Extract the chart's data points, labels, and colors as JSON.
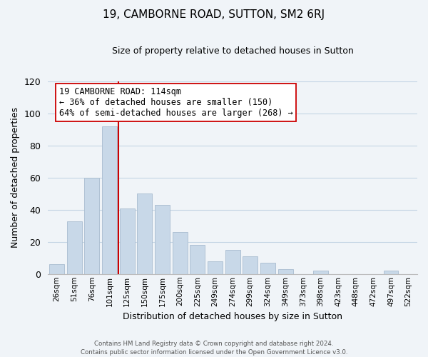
{
  "title": "19, CAMBORNE ROAD, SUTTON, SM2 6RJ",
  "subtitle": "Size of property relative to detached houses in Sutton",
  "xlabel": "Distribution of detached houses by size in Sutton",
  "ylabel": "Number of detached properties",
  "bar_labels": [
    "26sqm",
    "51sqm",
    "76sqm",
    "101sqm",
    "125sqm",
    "150sqm",
    "175sqm",
    "200sqm",
    "225sqm",
    "249sqm",
    "274sqm",
    "299sqm",
    "324sqm",
    "349sqm",
    "373sqm",
    "398sqm",
    "423sqm",
    "448sqm",
    "472sqm",
    "497sqm",
    "522sqm"
  ],
  "bar_values": [
    6,
    33,
    60,
    92,
    41,
    50,
    43,
    26,
    18,
    8,
    15,
    11,
    7,
    3,
    0,
    2,
    0,
    0,
    0,
    2,
    0
  ],
  "bar_color": "#c8d8e8",
  "bar_edge_color": "#a8bccf",
  "vline_color": "#cc0000",
  "ylim": [
    0,
    120
  ],
  "yticks": [
    0,
    20,
    40,
    60,
    80,
    100,
    120
  ],
  "annotation_title": "19 CAMBORNE ROAD: 114sqm",
  "annotation_line1": "← 36% of detached houses are smaller (150)",
  "annotation_line2": "64% of semi-detached houses are larger (268) →",
  "annotation_box_color": "#ffffff",
  "annotation_box_edge": "#cc0000",
  "footer1": "Contains HM Land Registry data © Crown copyright and database right 2024.",
  "footer2": "Contains public sector information licensed under the Open Government Licence v3.0.",
  "bg_color": "#f0f4f8",
  "grid_color": "#c5d5e5"
}
